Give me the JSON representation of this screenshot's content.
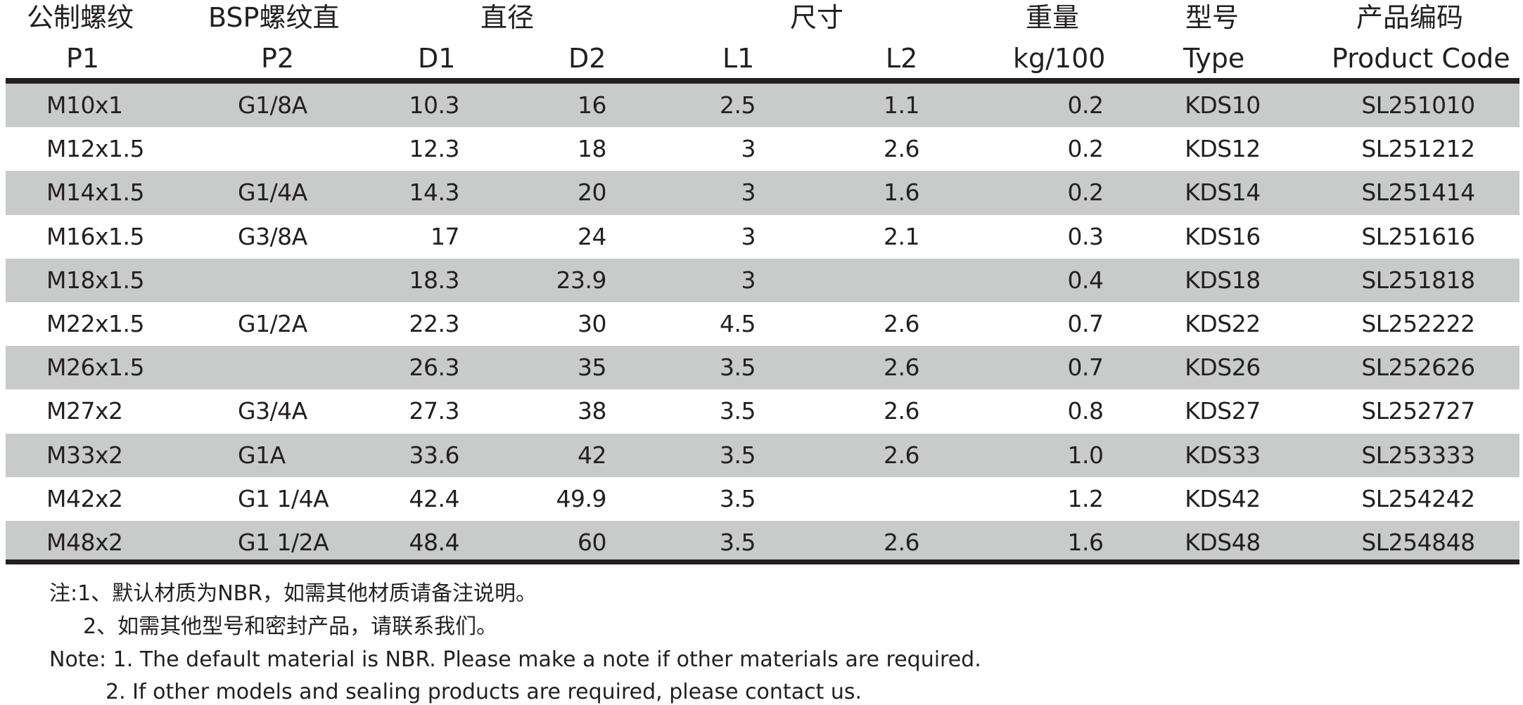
{
  "headers": {
    "metric_thread": "公制螺纹",
    "p1": "P1",
    "bsp_thread": "BSP螺纹直",
    "p2": "P2",
    "diameter": "直径",
    "d1": "D1",
    "d2": "D2",
    "size": "尺寸",
    "l1": "L1",
    "l2": "L2",
    "weight": "重量",
    "weight_unit": "kg/100",
    "model": "型号",
    "type": "Type",
    "product_code_cn": "产品编码",
    "product_code": "Product Code"
  },
  "rows": [
    {
      "p1": "M10x1",
      "p2": "G1/8A",
      "d1": "10.3",
      "d2": "16",
      "l1": "2.5",
      "l2": "1.1",
      "weight": "0.2",
      "type": "KDS10",
      "code": "SL251010"
    },
    {
      "p1": "M12x1.5",
      "p2": "",
      "d1": "12.3",
      "d2": "18",
      "l1": "3",
      "l2": "2.6",
      "weight": "0.2",
      "type": "KDS12",
      "code": "SL251212"
    },
    {
      "p1": "M14x1.5",
      "p2": "G1/4A",
      "d1": "14.3",
      "d2": "20",
      "l1": "3",
      "l2": "1.6",
      "weight": "0.2",
      "type": "KDS14",
      "code": "SL251414"
    },
    {
      "p1": "M16x1.5",
      "p2": "G3/8A",
      "d1": "17",
      "d2": "24",
      "l1": "3",
      "l2": "2.1",
      "weight": "0.3",
      "type": "KDS16",
      "code": "SL251616"
    },
    {
      "p1": "M18x1.5",
      "p2": "",
      "d1": "18.3",
      "d2": "23.9",
      "l1": "3",
      "l2": "",
      "weight": "0.4",
      "type": "KDS18",
      "code": "SL251818"
    },
    {
      "p1": "M22x1.5",
      "p2": "G1/2A",
      "d1": "22.3",
      "d2": "30",
      "l1": "4.5",
      "l2": "2.6",
      "weight": "0.7",
      "type": "KDS22",
      "code": "SL252222"
    },
    {
      "p1": "M26x1.5",
      "p2": "",
      "d1": "26.3",
      "d2": "35",
      "l1": "3.5",
      "l2": "2.6",
      "weight": "0.7",
      "type": "KDS26",
      "code": "SL252626"
    },
    {
      "p1": "M27x2",
      "p2": "G3/4A",
      "d1": "27.3",
      "d2": "38",
      "l1": "3.5",
      "l2": "2.6",
      "weight": "0.8",
      "type": "KDS27",
      "code": "SL252727"
    },
    {
      "p1": "M33x2",
      "p2": "G1A",
      "d1": "33.6",
      "d2": "42",
      "l1": "3.5",
      "l2": "2.6",
      "weight": "1.0",
      "type": "KDS33",
      "code": "SL253333"
    },
    {
      "p1": "M42x2",
      "p2": "G1 1/4A",
      "d1": "42.4",
      "d2": "49.9",
      "l1": "3.5",
      "l2": "",
      "weight": "1.2",
      "type": "KDS42",
      "code": "SL254242"
    },
    {
      "p1": "M48x2",
      "p2": "G1 1/2A",
      "d1": "48.4",
      "d2": "60",
      "l1": "3.5",
      "l2": "2.6",
      "weight": "1.6",
      "type": "KDS48",
      "code": "SL254848"
    }
  ],
  "notes": {
    "cn_1": "注:1、默认材质为NBR，如需其他材质请备注说明。",
    "cn_2": "2、如需其他型号和密封产品，请联系我们。",
    "en_1": "Note: 1. The default material is NBR. Please make a note if other materials are required.",
    "en_2": "2. If other models and sealing products are required, please contact us."
  },
  "colors": {
    "text": "#231f20",
    "row_shade": "#c9caca",
    "rule": "#231f20"
  }
}
